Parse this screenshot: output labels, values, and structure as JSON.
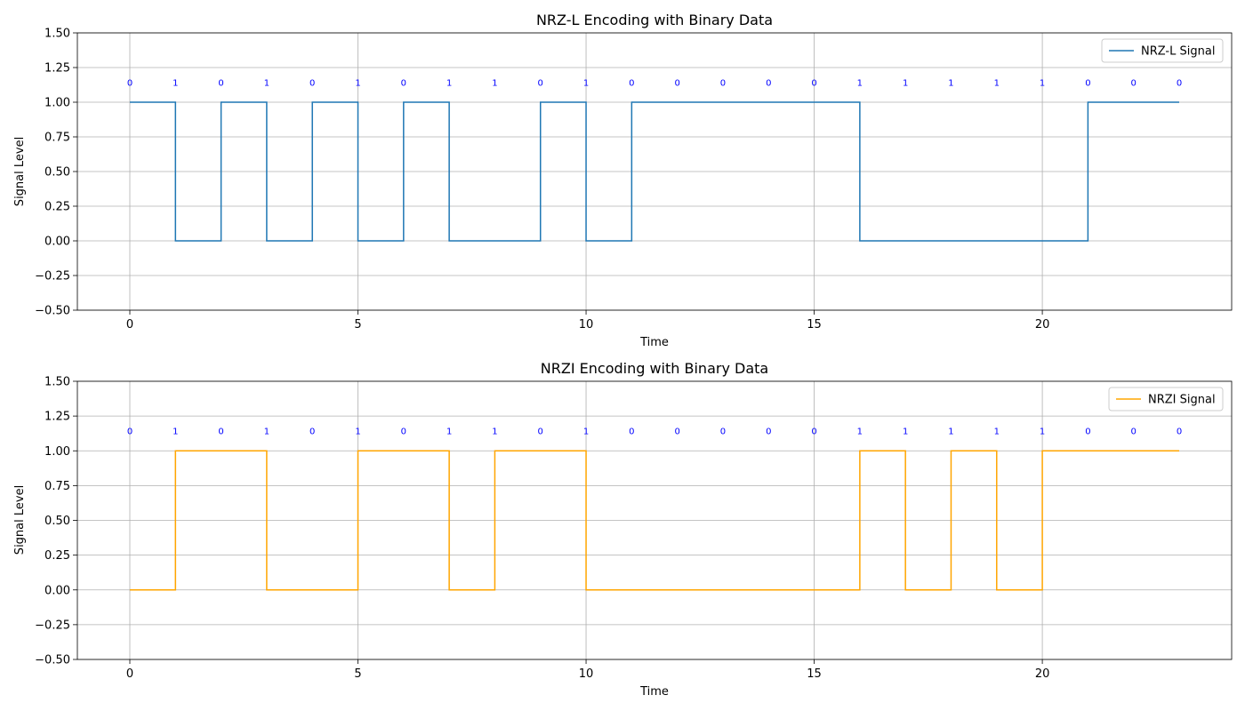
{
  "chart_data": [
    {
      "type": "line",
      "step": "post",
      "title": "NRZ-L Encoding with Binary Data",
      "xlabel": "Time",
      "ylabel": "Signal Level",
      "xlim": [
        -1.15,
        24.15
      ],
      "ylim": [
        -0.5,
        1.5
      ],
      "xticks": [
        0,
        5,
        10,
        15,
        20
      ],
      "xtick_labels": [
        "0",
        "5",
        "10",
        "15",
        "20"
      ],
      "yticks": [
        -0.5,
        -0.25,
        0.0,
        0.25,
        0.5,
        0.75,
        1.0,
        1.25,
        1.5
      ],
      "ytick_labels": [
        "−0.50",
        "−0.25",
        "0.00",
        "0.25",
        "0.50",
        "0.75",
        "1.00",
        "1.25",
        "1.50"
      ],
      "grid": true,
      "legend_position": "top-right",
      "bits": [
        "0",
        "1",
        "0",
        "1",
        "0",
        "1",
        "0",
        "1",
        "1",
        "0",
        "1",
        "0",
        "0",
        "0",
        "0",
        "0",
        "1",
        "1",
        "1",
        "1",
        "1",
        "0",
        "0",
        "0"
      ],
      "bit_label_y": 1.12,
      "series": [
        {
          "name": "NRZ-L Signal",
          "color": "#1f77b4",
          "x": [
            0,
            1,
            2,
            3,
            4,
            5,
            6,
            7,
            8,
            9,
            10,
            11,
            12,
            13,
            14,
            15,
            16,
            17,
            18,
            19,
            20,
            21,
            22,
            23
          ],
          "y": [
            1,
            0,
            1,
            0,
            1,
            0,
            1,
            0,
            0,
            1,
            0,
            1,
            1,
            1,
            1,
            1,
            0,
            0,
            0,
            0,
            0,
            1,
            1,
            1
          ]
        }
      ]
    },
    {
      "type": "line",
      "step": "post",
      "title": "NRZI Encoding with Binary Data",
      "xlabel": "Time",
      "ylabel": "Signal Level",
      "xlim": [
        -1.15,
        24.15
      ],
      "ylim": [
        -0.5,
        1.5
      ],
      "xticks": [
        0,
        5,
        10,
        15,
        20
      ],
      "xtick_labels": [
        "0",
        "5",
        "10",
        "15",
        "20"
      ],
      "yticks": [
        -0.5,
        -0.25,
        0.0,
        0.25,
        0.5,
        0.75,
        1.0,
        1.25,
        1.5
      ],
      "ytick_labels": [
        "−0.50",
        "−0.25",
        "0.00",
        "0.25",
        "0.50",
        "0.75",
        "1.00",
        "1.25",
        "1.50"
      ],
      "grid": true,
      "legend_position": "top-right",
      "bits": [
        "0",
        "1",
        "0",
        "1",
        "0",
        "1",
        "0",
        "1",
        "1",
        "0",
        "1",
        "0",
        "0",
        "0",
        "0",
        "0",
        "1",
        "1",
        "1",
        "1",
        "1",
        "0",
        "0",
        "0"
      ],
      "bit_label_y": 1.12,
      "series": [
        {
          "name": "NRZI Signal",
          "color": "#ffa500",
          "x": [
            0,
            1,
            2,
            3,
            4,
            5,
            6,
            7,
            8,
            9,
            10,
            11,
            12,
            13,
            14,
            15,
            16,
            17,
            18,
            19,
            20,
            21,
            22,
            23
          ],
          "y": [
            0,
            1,
            1,
            0,
            0,
            1,
            1,
            0,
            1,
            1,
            0,
            0,
            0,
            0,
            0,
            0,
            1,
            0,
            1,
            0,
            1,
            1,
            1,
            1
          ]
        }
      ]
    }
  ]
}
